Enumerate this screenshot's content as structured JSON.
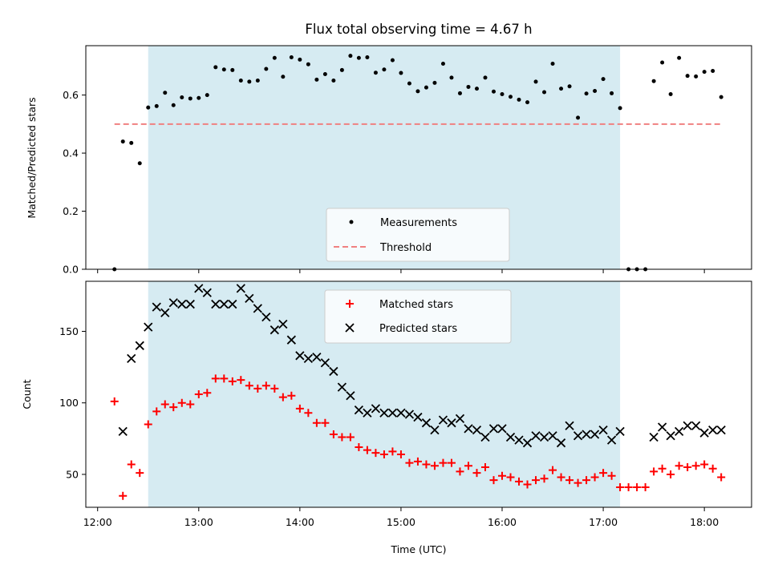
{
  "figure": {
    "title": "Flux total observing time = 4.67 h",
    "xlabel": "Time (UTC)"
  },
  "chart_data": [
    {
      "type": "scatter",
      "panel": "top",
      "ylabel": "Matched/Predicted stars",
      "ylim": [
        0,
        0.77
      ],
      "xlim": [
        "11:53",
        "18:28"
      ],
      "y_ticks": [
        "0.0",
        "0.2",
        "0.4",
        "0.6"
      ],
      "y_tick_values": [
        0,
        0.2,
        0.4,
        0.6
      ],
      "shaded_span": [
        "12:30",
        "17:10"
      ],
      "shade_color": "#add8e6",
      "legend": {
        "position": "lower-center",
        "entries": [
          "Measurements",
          "Threshold"
        ]
      },
      "series": [
        {
          "name": "Measurements",
          "marker": "dot",
          "color": "#000000",
          "x": [
            "12:10",
            "12:15",
            "12:20",
            "12:25",
            "12:30",
            "12:35",
            "12:40",
            "12:45",
            "12:50",
            "12:55",
            "13:00",
            "13:05",
            "13:10",
            "13:15",
            "13:20",
            "13:25",
            "13:30",
            "13:35",
            "13:40",
            "13:45",
            "13:50",
            "13:55",
            "14:00",
            "14:05",
            "14:10",
            "14:15",
            "14:20",
            "14:25",
            "14:30",
            "14:35",
            "14:40",
            "14:45",
            "14:50",
            "14:55",
            "15:00",
            "15:05",
            "15:10",
            "15:15",
            "15:20",
            "15:25",
            "15:30",
            "15:35",
            "15:40",
            "15:45",
            "15:50",
            "15:55",
            "16:00",
            "16:05",
            "16:10",
            "16:15",
            "16:20",
            "16:25",
            "16:30",
            "16:35",
            "16:40",
            "16:45",
            "16:50",
            "16:55",
            "17:00",
            "17:05",
            "17:10",
            "17:15",
            "17:20",
            "17:25",
            "17:30",
            "17:35",
            "17:40",
            "17:45",
            "17:50",
            "17:55",
            "18:00",
            "18:05",
            "18:10"
          ],
          "y": [
            0.0,
            0.44,
            0.435,
            0.365,
            0.557,
            0.562,
            0.608,
            0.565,
            0.592,
            0.588,
            0.59,
            0.6,
            0.696,
            0.688,
            0.686,
            0.65,
            0.646,
            0.65,
            0.69,
            0.728,
            0.663,
            0.73,
            0.722,
            0.706,
            0.653,
            0.672,
            0.65,
            0.686,
            0.735,
            0.728,
            0.73,
            0.677,
            0.688,
            0.72,
            0.676,
            0.64,
            0.613,
            0.626,
            0.642,
            0.708,
            0.66,
            0.606,
            0.628,
            0.622,
            0.66,
            0.612,
            0.603,
            0.594,
            0.584,
            0.575,
            0.646,
            0.61,
            0.708,
            0.622,
            0.63,
            0.522,
            0.605,
            0.614,
            0.655,
            0.606,
            0.555,
            0.0,
            0.0,
            0.0,
            0.648,
            0.712,
            0.603,
            0.728,
            0.666,
            0.664,
            0.68,
            0.683,
            0.593
          ]
        },
        {
          "name": "Threshold",
          "marker": "dashed-line",
          "color": "#f08080",
          "x": [
            "12:10",
            "18:10"
          ],
          "y": [
            0.5,
            0.5
          ]
        }
      ]
    },
    {
      "type": "scatter",
      "panel": "bottom",
      "ylabel": "Count",
      "ylim": [
        27,
        185
      ],
      "xlim": [
        "11:53",
        "18:28"
      ],
      "y_ticks": [
        "50",
        "100",
        "150"
      ],
      "y_tick_values": [
        50,
        100,
        150
      ],
      "x_ticks": [
        "12:00",
        "13:00",
        "14:00",
        "15:00",
        "16:00",
        "17:00",
        "18:00"
      ],
      "shaded_span": [
        "12:30",
        "17:10"
      ],
      "shade_color": "#add8e6",
      "legend": {
        "position": "upper-center",
        "entries": [
          "Matched stars",
          "Predicted stars"
        ]
      },
      "series": [
        {
          "name": "Matched stars",
          "marker": "plus",
          "color": "#ff0000",
          "x": [
            "12:10",
            "12:15",
            "12:20",
            "12:25",
            "12:30",
            "12:35",
            "12:40",
            "12:45",
            "12:50",
            "12:55",
            "13:00",
            "13:05",
            "13:10",
            "13:15",
            "13:20",
            "13:25",
            "13:30",
            "13:35",
            "13:40",
            "13:45",
            "13:50",
            "13:55",
            "14:00",
            "14:05",
            "14:10",
            "14:15",
            "14:20",
            "14:25",
            "14:30",
            "14:35",
            "14:40",
            "14:45",
            "14:50",
            "14:55",
            "15:00",
            "15:05",
            "15:10",
            "15:15",
            "15:20",
            "15:25",
            "15:30",
            "15:35",
            "15:40",
            "15:45",
            "15:50",
            "15:55",
            "16:00",
            "16:05",
            "16:10",
            "16:15",
            "16:20",
            "16:25",
            "16:30",
            "16:35",
            "16:40",
            "16:45",
            "16:50",
            "16:55",
            "17:00",
            "17:05",
            "17:10",
            "17:15",
            "17:20",
            "17:25",
            "17:30",
            "17:35",
            "17:40",
            "17:45",
            "17:50",
            "17:55",
            "18:00",
            "18:05",
            "18:10"
          ],
          "y": [
            101,
            35,
            57,
            51,
            85,
            94,
            99,
            97,
            100,
            99,
            106,
            107,
            117,
            117,
            115,
            116,
            112,
            110,
            112,
            110,
            104,
            105,
            96,
            93,
            86,
            86,
            78,
            76,
            76,
            69,
            67,
            65,
            64,
            66,
            64,
            58,
            59,
            57,
            56,
            58,
            58,
            52,
            56,
            51,
            55,
            46,
            49,
            48,
            45,
            43,
            46,
            47,
            53,
            48,
            46,
            44,
            46,
            48,
            51,
            49,
            41,
            41,
            41,
            41,
            52,
            54,
            50,
            56,
            55,
            56,
            57,
            54,
            48
          ]
        },
        {
          "name": "Predicted stars",
          "marker": "x",
          "color": "#000000",
          "x": [
            "12:15",
            "12:20",
            "12:25",
            "12:30",
            "12:35",
            "12:40",
            "12:45",
            "12:50",
            "12:55",
            "13:00",
            "13:05",
            "13:10",
            "13:15",
            "13:20",
            "13:25",
            "13:30",
            "13:35",
            "13:40",
            "13:45",
            "13:50",
            "13:55",
            "14:00",
            "14:05",
            "14:10",
            "14:15",
            "14:20",
            "14:25",
            "14:30",
            "14:35",
            "14:40",
            "14:45",
            "14:50",
            "14:55",
            "15:00",
            "15:05",
            "15:10",
            "15:15",
            "15:20",
            "15:25",
            "15:30",
            "15:35",
            "15:40",
            "15:45",
            "15:50",
            "15:55",
            "16:00",
            "16:05",
            "16:10",
            "16:15",
            "16:20",
            "16:25",
            "16:30",
            "16:35",
            "16:40",
            "16:45",
            "16:50",
            "16:55",
            "17:00",
            "17:05",
            "17:10",
            "17:30",
            "17:35",
            "17:40",
            "17:45",
            "17:50",
            "17:55",
            "18:00",
            "18:05",
            "18:10"
          ],
          "y": [
            80,
            131,
            140,
            153,
            167,
            163,
            170,
            169,
            169,
            180,
            177,
            169,
            169,
            169,
            180,
            173,
            166,
            160,
            151,
            155,
            144,
            133,
            131,
            132,
            128,
            122,
            111,
            105,
            95,
            93,
            96,
            93,
            93,
            93,
            92,
            90,
            86,
            81,
            88,
            86,
            89,
            82,
            81,
            76,
            82,
            82,
            76,
            74,
            72,
            77,
            76,
            77,
            72,
            84,
            77,
            78,
            78,
            81,
            74,
            80,
            76,
            83,
            77,
            80,
            84,
            84,
            79,
            81,
            81
          ]
        }
      ]
    }
  ]
}
